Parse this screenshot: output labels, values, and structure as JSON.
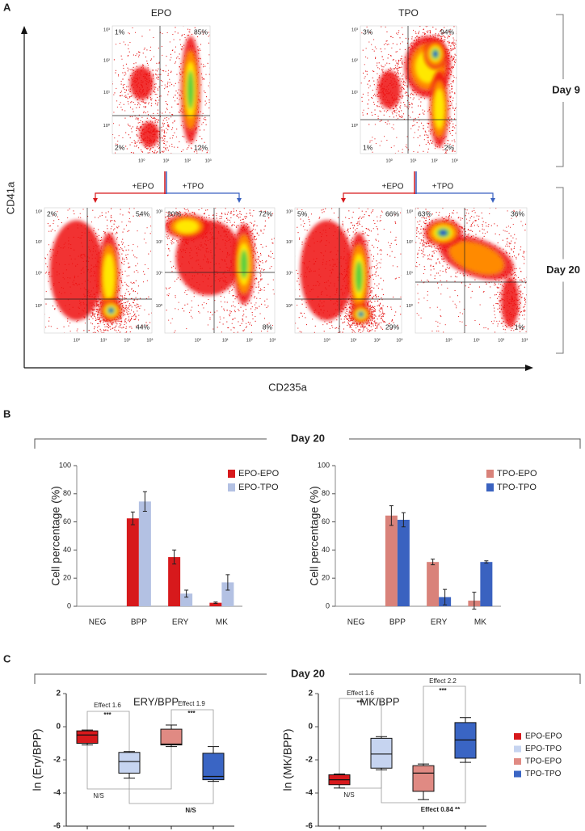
{
  "panel_a": {
    "letter": "A",
    "y_axis": "CD41a",
    "x_axis": "CD235a",
    "log_ticks": [
      "10⁰",
      "10¹",
      "10²",
      "10³"
    ],
    "day9": {
      "label": "Day 9",
      "plots": [
        {
          "title": "EPO",
          "ul": "1%",
          "ur": "85%",
          "ll": "2%",
          "lr": "12%"
        },
        {
          "title": "TPO",
          "ul": "3%",
          "ur": "94%",
          "ll": "1%",
          "lr": "2%"
        }
      ]
    },
    "branches": [
      {
        "left": "+EPO",
        "right": "+TPO"
      },
      {
        "left": "+EPO",
        "right": "+TPO"
      }
    ],
    "day20": {
      "label": "Day 20",
      "plots": [
        {
          "ul": "2%",
          "ur": "54%",
          "lr": "44%"
        },
        {
          "ul": "20%",
          "ur": "72%",
          "lr": "8%"
        },
        {
          "ul": "5%",
          "ur": "66%",
          "lr": "29%"
        },
        {
          "ul": "63%",
          "ur": "36%",
          "lr": "1%"
        }
      ]
    }
  },
  "panel_b": {
    "letter": "B",
    "header": "Day 20"
  },
  "panel_c": {
    "letter": "C",
    "header": "Day 20",
    "legend": [
      {
        "name": "EPO-EPO",
        "color": "#d7191c"
      },
      {
        "name": "EPO-TPO",
        "color": "#c6d4f0"
      },
      {
        "name": "TPO-EPO",
        "color": "#e08a83"
      },
      {
        "name": "TPO-TPO",
        "color": "#3a65c4"
      }
    ]
  },
  "chart_data": [
    {
      "type": "bar",
      "y_label": "Cell percentage (%)",
      "categories": [
        "NEG",
        "BPP",
        "ERY",
        "MK"
      ],
      "series": [
        {
          "name": "EPO-EPO",
          "color": "#d7191c",
          "values": [
            0,
            62.5,
            35,
            2.5
          ],
          "errors": [
            0,
            4.5,
            5,
            0.5
          ]
        },
        {
          "name": "EPO-TPO",
          "color": "#b3c1e3",
          "values": [
            0,
            74.5,
            9,
            17
          ],
          "errors": [
            0,
            7,
            2.5,
            5.5
          ]
        }
      ],
      "ylim": [
        0,
        100
      ],
      "yticks": [
        0,
        20,
        40,
        60,
        80,
        100
      ],
      "legend": "top-right"
    },
    {
      "type": "bar",
      "y_label": "Cell percentage (%)",
      "categories": [
        "NEG",
        "BPP",
        "ERY",
        "MK"
      ],
      "series": [
        {
          "name": "TPO-EPO",
          "color": "#d9827a",
          "values": [
            0,
            64.5,
            31.5,
            4
          ],
          "errors": [
            0,
            7,
            2,
            6
          ]
        },
        {
          "name": "TPO-TPO",
          "color": "#3a62c0",
          "values": [
            0,
            61.5,
            6.5,
            31.5
          ],
          "errors": [
            0,
            5,
            5.5,
            0.8
          ]
        }
      ],
      "ylim": [
        0,
        100
      ],
      "yticks": [
        0,
        20,
        40,
        60,
        80,
        100
      ],
      "legend": "top-right"
    },
    {
      "type": "box",
      "title": "ERY/BPP",
      "y_label": "ln (Ery/BPP)",
      "boxes": [
        {
          "color": "#d7191c",
          "min": -1.1,
          "q1": -1.0,
          "median": -0.5,
          "q3": -0.25,
          "max": -0.2
        },
        {
          "color": "#c6d4f0",
          "min": -3.1,
          "q1": -2.8,
          "median": -2.1,
          "q3": -1.55,
          "max": -1.5
        },
        {
          "color": "#e08a83",
          "min": -1.2,
          "q1": -1.1,
          "median": -1.05,
          "q3": -0.15,
          "max": 0.1
        },
        {
          "color": "#3a65c4",
          "min": -3.3,
          "q1": -3.2,
          "median": -3.0,
          "q3": -1.6,
          "max": -1.2
        }
      ],
      "ylim": [
        -6,
        2
      ],
      "yticks": [
        -6,
        -4,
        -2,
        0,
        2
      ],
      "annotations": [
        "Effect 1.6",
        "***",
        "Effect 1.9",
        "***",
        "N/S",
        "N/S"
      ]
    },
    {
      "type": "box",
      "title": "MK/BPP",
      "y_label": "ln (MK/BPP)",
      "boxes": [
        {
          "color": "#d7191c",
          "min": -3.7,
          "q1": -3.5,
          "median": -3.2,
          "q3": -2.9,
          "max": -2.85
        },
        {
          "color": "#c6d4f0",
          "min": -2.6,
          "q1": -2.5,
          "median": -1.65,
          "q3": -0.7,
          "max": -0.6
        },
        {
          "color": "#e08a83",
          "min": -4.4,
          "q1": -3.9,
          "median": -2.8,
          "q3": -2.35,
          "max": -2.25
        },
        {
          "color": "#3a65c4",
          "min": -2.15,
          "q1": -1.9,
          "median": -0.8,
          "q3": 0.25,
          "max": 0.55
        }
      ],
      "ylim": [
        -6,
        2
      ],
      "yticks": [
        -6,
        -4,
        -2,
        0,
        2
      ],
      "annotations": [
        "Effect 1.6",
        "***",
        "Effect 2.2",
        "***",
        "N/S",
        "Effect 0.84 **"
      ]
    }
  ]
}
